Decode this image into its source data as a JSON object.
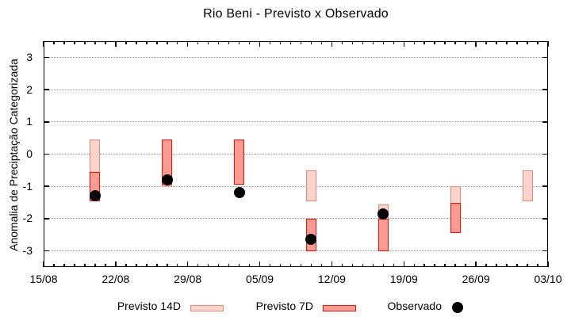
{
  "title": "Rio Beni - Previsto x Observado",
  "colors": {
    "previsto14_fill": "#FCD4CC",
    "previsto14_border": "#F08472",
    "previsto7_fill": "#FB9B94",
    "previsto7_border": "#EE1100",
    "observado": "#000000",
    "grid": "#999999",
    "axis": "#000000",
    "background": "#FFFFFF"
  },
  "legend": {
    "items": [
      {
        "label": "Previsto 14D",
        "swatch": "light-pink-box"
      },
      {
        "label": "Previsto 7D",
        "swatch": "red-box"
      },
      {
        "label": "Observado",
        "swatch": "black-dot"
      }
    ]
  },
  "chart_data": {
    "type": "bar",
    "subtype": "vertical-range-bars-with-observed-scatter",
    "title": "Rio Beni - Previsto x Observado",
    "xlabel": "",
    "ylabel": "Anomalia de Preciptação Categorizada",
    "ylim": [
      -3.5,
      3.5
    ],
    "yticks": [
      3,
      2,
      1,
      0,
      -1,
      -2,
      -3
    ],
    "grid": "horizontal-dotted",
    "legend_position": "bottom",
    "x_axis_unit": "days since 15/08",
    "xlim_days": [
      0,
      49
    ],
    "minor_tick_every_days": 1,
    "xticks": [
      {
        "day": 0,
        "label": "15/08"
      },
      {
        "day": 7,
        "label": "22/08"
      },
      {
        "day": 14,
        "label": "29/08"
      },
      {
        "day": 21,
        "label": "05/09"
      },
      {
        "day": 28,
        "label": "12/09"
      },
      {
        "day": 35,
        "label": "19/09"
      },
      {
        "day": 42,
        "label": "26/09"
      },
      {
        "day": 49,
        "label": "03/10"
      }
    ],
    "bar_width_days": 1,
    "series": [
      {
        "name": "Previsto 14D",
        "type": "range-bar",
        "points": [
          {
            "day": 5,
            "high": 0.45,
            "low": -1.45
          },
          {
            "day": 12,
            "high": 0.45,
            "low": -1.0
          },
          {
            "day": 26,
            "high": -0.5,
            "low": -1.45
          },
          {
            "day": 33,
            "high": -1.55,
            "low": -3.0
          },
          {
            "day": 40,
            "high": -1.0,
            "low": -2.45
          },
          {
            "day": 47,
            "high": -0.5,
            "low": -1.45
          }
        ]
      },
      {
        "name": "Previsto 7D",
        "type": "range-bar",
        "points": [
          {
            "day": 5,
            "high": -0.55,
            "low": -1.45
          },
          {
            "day": 12,
            "high": 0.45,
            "low": -0.95
          },
          {
            "day": 19,
            "high": 0.45,
            "low": -0.95
          },
          {
            "day": 26,
            "high": -2.0,
            "low": -3.0
          },
          {
            "day": 33,
            "high": -2.0,
            "low": -3.0
          },
          {
            "day": 40,
            "high": -1.5,
            "low": -2.45
          }
        ]
      },
      {
        "name": "Observado",
        "type": "scatter",
        "points": [
          {
            "day": 5,
            "value": -1.3
          },
          {
            "day": 12,
            "value": -0.8
          },
          {
            "day": 19,
            "value": -1.2
          },
          {
            "day": 26,
            "value": -2.65
          },
          {
            "day": 33,
            "value": -1.85
          }
        ]
      }
    ]
  }
}
